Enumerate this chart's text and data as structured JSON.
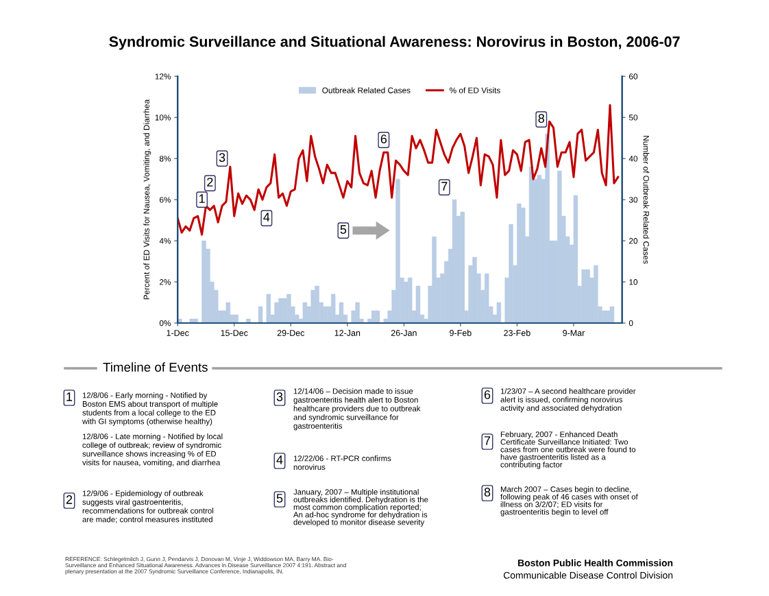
{
  "chart_data": {
    "type": "bar",
    "title": "Syndromic Surveillance and Situational Awareness: Norovirus in Boston, 2006-07",
    "ylabel": "Percent of ED Visits for Nausea, Vomiting, and Diarrhea",
    "y2label": "Number of Outbreak Related Cases",
    "x": [
      "2006-12-01",
      "2006-12-02",
      "2006-12-03",
      "2006-12-04",
      "2006-12-05",
      "2006-12-06",
      "2006-12-07",
      "2006-12-08",
      "2006-12-09",
      "2006-12-10",
      "2006-12-11",
      "2006-12-12",
      "2006-12-13",
      "2006-12-14",
      "2006-12-15",
      "2006-12-16",
      "2006-12-17",
      "2006-12-18",
      "2006-12-19",
      "2006-12-20",
      "2006-12-21",
      "2006-12-22",
      "2006-12-23",
      "2006-12-24",
      "2006-12-25",
      "2006-12-26",
      "2006-12-27",
      "2006-12-28",
      "2006-12-29",
      "2006-12-30",
      "2006-12-31",
      "2007-01-01",
      "2007-01-02",
      "2007-01-03",
      "2007-01-04",
      "2007-01-05",
      "2007-01-06",
      "2007-01-07",
      "2007-01-08",
      "2007-01-09",
      "2007-01-10",
      "2007-01-11",
      "2007-01-12",
      "2007-01-13",
      "2007-01-14",
      "2007-01-15",
      "2007-01-16",
      "2007-01-17",
      "2007-01-18",
      "2007-01-19",
      "2007-01-20",
      "2007-01-21",
      "2007-01-22",
      "2007-01-23",
      "2007-01-24",
      "2007-01-25",
      "2007-01-26",
      "2007-01-27",
      "2007-01-28",
      "2007-01-29",
      "2007-01-30",
      "2007-01-31",
      "2007-02-01",
      "2007-02-02",
      "2007-02-03",
      "2007-02-04",
      "2007-02-05",
      "2007-02-06",
      "2007-02-07",
      "2007-02-08",
      "2007-02-09",
      "2007-02-10",
      "2007-02-11",
      "2007-02-12",
      "2007-02-13",
      "2007-02-14",
      "2007-02-15",
      "2007-02-16",
      "2007-02-17",
      "2007-02-18",
      "2007-02-19",
      "2007-02-20",
      "2007-02-21",
      "2007-02-22",
      "2007-02-23",
      "2007-02-24",
      "2007-02-25",
      "2007-02-26",
      "2007-02-27",
      "2007-02-28",
      "2007-03-01",
      "2007-03-02",
      "2007-03-03",
      "2007-03-04",
      "2007-03-05",
      "2007-03-06",
      "2007-03-07",
      "2007-03-08",
      "2007-03-09",
      "2007-03-10",
      "2007-03-11",
      "2007-03-12",
      "2007-03-13",
      "2007-03-14",
      "2007-03-15",
      "2007-03-16",
      "2007-03-17",
      "2007-03-18",
      "2007-03-19",
      "2007-03-20"
    ],
    "series": [
      {
        "name": "Outbreak Related Cases",
        "axis": "y2",
        "color": "#b9cde5",
        "values": [
          1,
          0,
          0,
          1,
          1,
          0,
          20,
          18,
          10,
          8,
          3,
          3,
          5,
          2,
          2,
          0,
          0,
          1,
          0,
          0,
          4,
          0,
          7,
          2,
          5,
          6,
          6,
          7,
          4,
          2,
          1,
          5,
          4,
          8,
          9,
          5,
          4,
          4,
          7,
          2,
          5,
          2,
          0,
          3,
          5,
          1,
          0,
          1,
          3,
          3,
          0,
          1,
          3,
          8,
          35,
          11,
          10,
          11,
          3,
          9,
          2,
          1,
          9,
          21,
          11,
          12,
          15,
          18,
          30,
          26,
          27,
          3,
          14,
          16,
          12,
          8,
          12,
          4,
          2,
          5,
          0,
          11,
          24,
          14,
          29,
          28,
          21,
          38,
          35,
          36,
          35,
          46,
          20,
          20,
          37,
          26,
          21,
          19,
          31,
          9,
          13,
          13,
          11,
          14,
          4,
          3,
          3,
          4,
          0,
          0
        ]
      },
      {
        "name": "% of ED Visits",
        "type": "line",
        "color": "#c00000",
        "values": [
          5.1,
          4.4,
          4.7,
          4.5,
          5.1,
          5.2,
          4.3,
          5.7,
          5.5,
          5.7,
          4.9,
          5.7,
          5.9,
          7.6,
          5.2,
          6.3,
          5.8,
          6.2,
          6.0,
          5.5,
          6.5,
          6.0,
          6.6,
          6.8,
          8.2,
          6.1,
          6.3,
          5.7,
          6.4,
          6.5,
          8.0,
          8.4,
          6.9,
          9.1,
          8.1,
          7.5,
          6.8,
          7.7,
          7.3,
          7.3,
          6.7,
          6.1,
          6.9,
          6.6,
          9.1,
          7.3,
          6.8,
          6.7,
          7.4,
          6.1,
          7.4,
          8.3,
          8.3,
          6.1,
          7.9,
          7.7,
          7.4,
          7.2,
          9.1,
          8.5,
          8.9,
          8.4,
          7.8,
          7.8,
          9.4,
          8.8,
          8.2,
          7.8,
          8.5,
          8.9,
          9.2,
          8.6,
          7.3,
          8.1,
          9.0,
          6.7,
          8.2,
          8.1,
          7.7,
          6.1,
          8.9,
          7.2,
          7.4,
          8.4,
          8.2,
          7.4,
          8.8,
          8.9,
          7.0,
          7.5,
          8.5,
          7.6,
          9.8,
          9.5,
          7.6,
          8.3,
          8.3,
          8.8,
          7.1,
          9.2,
          9.4,
          7.9,
          8.1,
          8.3,
          9.4,
          7.3,
          6.7,
          10.6,
          6.8,
          7.1
        ]
      }
    ],
    "xlim": [
      "2006-12-01",
      "2007-03-21"
    ],
    "xticks": [
      {
        "value": "2006-12-01",
        "label": "1-Dec"
      },
      {
        "value": "2006-12-15",
        "label": "15-Dec"
      },
      {
        "value": "2006-12-29",
        "label": "29-Dec"
      },
      {
        "value": "2007-01-12",
        "label": "12-Jan"
      },
      {
        "value": "2007-01-26",
        "label": "26-Jan"
      },
      {
        "value": "2007-02-09",
        "label": "9-Feb"
      },
      {
        "value": "2007-02-23",
        "label": "23-Feb"
      },
      {
        "value": "2007-03-09",
        "label": "9-Mar"
      }
    ],
    "ylim": [
      0,
      12
    ],
    "yticks": [
      {
        "value": 0,
        "label": "0%"
      },
      {
        "value": 2,
        "label": "2%"
      },
      {
        "value": 4,
        "label": "4%"
      },
      {
        "value": 6,
        "label": "6%"
      },
      {
        "value": 8,
        "label": "8%"
      },
      {
        "value": 10,
        "label": "10%"
      },
      {
        "value": 12,
        "label": "12%"
      }
    ],
    "y2lim": [
      0,
      60
    ],
    "y2ticks": [
      0,
      10,
      20,
      30,
      40,
      50,
      60
    ],
    "legend": "top",
    "grid": false,
    "annotations": [
      {
        "text": "1",
        "x": "2006-12-07",
        "y": 6.0
      },
      {
        "text": "2",
        "x": "2006-12-09",
        "y": 6.8
      },
      {
        "text": "3",
        "x": "2006-12-12",
        "y": 8.0
      },
      {
        "text": "4",
        "x": "2006-12-23",
        "y": 5.1
      },
      {
        "text": "5",
        "x": "2007-01-11",
        "y": 4.5
      },
      {
        "text": "6",
        "x": "2007-01-21",
        "y": 8.9
      },
      {
        "text": "7",
        "x": "2007-02-05",
        "y": 6.6
      },
      {
        "text": "8",
        "x": "2007-03-01",
        "y": 9.9
      },
      "Timeline of Events",
      "1",
      "12/8/06 - Early morning - Notified by\nBoston EMS about transport of multiple\nstudents from a local college to the ED\nwith GI symptoms (otherwise healthy)",
      "12/8/06 - Late morning - Notified by local\ncollege of outbreak; review of syndromic\nsurveillance shows increasing % of ED\nvisits for nausea, vomiting, and diarrhea",
      "2",
      "12/9/06 - Epidemiology of outbreak\nsuggests viral gastroenteritis,\nrecommendations for outbreak control\nare made; control measures instituted",
      "3",
      "12/14/06 – Decision made to issue\ngastroenteritis health alert to Boston\nhealthcare providers due to outbreak\nand syndromic surveillance for\ngastroenteritis",
      "4",
      "12/22/06 - RT-PCR confirms\nnorovirus",
      "5",
      "January, 2007 – Multiple institutional\noutbreaks identified. Dehydration is the\nmost common complication reported;\nAn ad-hoc syndrome for dehydration is\ndeveloped to monitor disease severity",
      "6",
      "1/23/07 – A second healthcare provider\nalert is issued, confirming norovirus\nactivity and associated dehydration",
      "7",
      "February, 2007 - Enhanced Death\nCertificate Surveillance Initiated: Two\ncases from one outbreak were found to\nhave gastroenteritis listed as a\ncontributing factor",
      "8",
      "March 2007 – Cases begin to decline,\nfollowing peak of 46 cases with onset of\nillness on 3/2/07; ED visits for\ngastroenteritis begin to level off",
      "REFERENCE: Schlegelmilch J, Gunn J, Pendarvis J, Donovan M, Vinje J, Widdowson MA, Barry MA. Bio-\nSurveillance and Enhanced Situational Awareness. Advances in Disease Surveillance 2007 4:191. Abstract and\nplenary presentation at the 2007 Syndromic Surveillance Conference, Indianapolis, IN.",
      "Boston Public Health Commission",
      "Communicable Disease Control Division"
    ]
  }
}
